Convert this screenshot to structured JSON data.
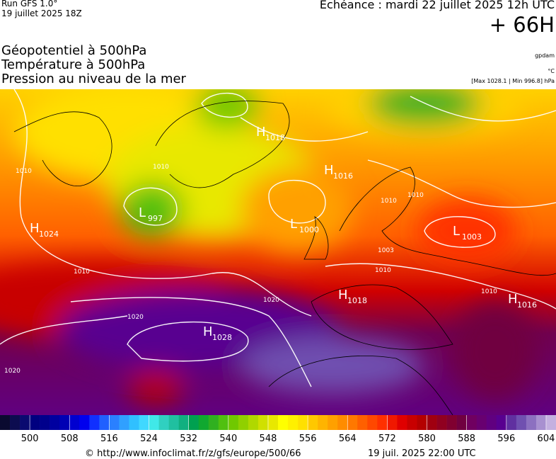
{
  "header": {
    "run": "Run GFS 1.0°",
    "run_date": "19 juillet 2025 18Z",
    "valid": "Echéance : mardi 22 juillet 2025 12h UTC",
    "lead": "+ 66H",
    "titles": [
      "Géopotentiel à 500hPa",
      "Température à 500hPa",
      "Pression au niveau de la mer"
    ],
    "units": [
      "gpdam",
      "°C",
      "[Max 1028.1 | Min 996.8] hPa"
    ]
  },
  "map": {
    "centers": [
      {
        "type": "H",
        "value": 1024
      },
      {
        "type": "L",
        "value": 997
      },
      {
        "type": "H",
        "value": 1018
      },
      {
        "type": "H",
        "value": 1016
      },
      {
        "type": "L",
        "value": 1000
      },
      {
        "type": "L",
        "value": 1003
      },
      {
        "type": "H",
        "value": 1018
      },
      {
        "type": "H",
        "value": 1016
      },
      {
        "type": "H",
        "value": 1028
      }
    ],
    "isobar_labels": [
      1010,
      1010,
      1010,
      1020,
      1020,
      1020,
      1010,
      1010,
      1010,
      1010,
      1003
    ]
  },
  "scale": {
    "min": 494,
    "max": 606,
    "ticks": [
      500,
      508,
      516,
      524,
      532,
      540,
      548,
      556,
      564,
      572,
      580,
      588,
      596,
      604
    ],
    "colors": [
      "#0a0a30",
      "#0c0c50",
      "#0a0a70",
      "#000080",
      "#00008c",
      "#0000a0",
      "#0000b4",
      "#0000d0",
      "#0000ee",
      "#1030ff",
      "#2060ff",
      "#2a80ff",
      "#30a0ff",
      "#30c0ff",
      "#40d8ff",
      "#40e8e8",
      "#30d0c0",
      "#20c0a0",
      "#10b080",
      "#00a050",
      "#10a830",
      "#30b020",
      "#50c010",
      "#70c800",
      "#90d000",
      "#b0d800",
      "#d0e000",
      "#e8e800",
      "#ffff00",
      "#fff000",
      "#ffe000",
      "#ffc800",
      "#ffb400",
      "#ffa000",
      "#ff8c00",
      "#ff7800",
      "#ff6000",
      "#ff4800",
      "#ff3000",
      "#f01800",
      "#e00000",
      "#c80000",
      "#b40000",
      "#a00010",
      "#900020",
      "#800030",
      "#700040",
      "#700060",
      "#680070",
      "#600080",
      "#580090",
      "#6030a0",
      "#7050b0",
      "#8c70c0",
      "#a890d0",
      "#c4b0e0"
    ]
  },
  "footer": {
    "source": "© http://www.infoclimat.fr/z/gfs/europe/500/66",
    "issued": "19 juil. 2025 22:00 UTC"
  }
}
